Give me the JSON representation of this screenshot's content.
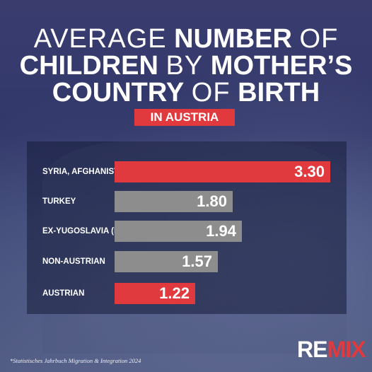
{
  "title": {
    "line1_light": "AVERAGE",
    "line1_bold": "NUMBER",
    "line1_light2": "OF",
    "line2_bold": "CHILDREN",
    "line2_light": "BY",
    "line2_bold2": "MOTHER’S",
    "line3_bold": "COUNTRY",
    "line3_light": "OF",
    "line3_bold2": "BIRTH"
  },
  "subtitle": "IN AUSTRIA",
  "source": "*Statistisches Jahrbuch Migration & Integration 2024",
  "logo": {
    "part1": "RE",
    "part2": "MIX"
  },
  "colors": {
    "red": "#e03a3e",
    "gray": "#8d8d8d",
    "white": "#ffffff"
  },
  "chart_data": {
    "type": "bar",
    "orientation": "horizontal",
    "title": "AVERAGE NUMBER OF CHILDREN BY MOTHER’S COUNTRY OF BIRTH",
    "subtitle": "IN AUSTRIA",
    "categories": [
      "SYRIA, AFGHANISTAN, IRAQ",
      "TURKEY",
      "EX-YUGOSLAVIA (NON-EU)",
      "NON-AUSTRIAN",
      "AUSTRIAN"
    ],
    "values": [
      3.3,
      1.8,
      1.94,
      1.57,
      1.22
    ],
    "value_labels": [
      "3.30",
      "1.80",
      "1.94",
      "1.57",
      "1.22"
    ],
    "bar_colors": [
      "#e03a3e",
      "#8d8d8d",
      "#8d8d8d",
      "#8d8d8d",
      "#e03a3e"
    ]
  }
}
